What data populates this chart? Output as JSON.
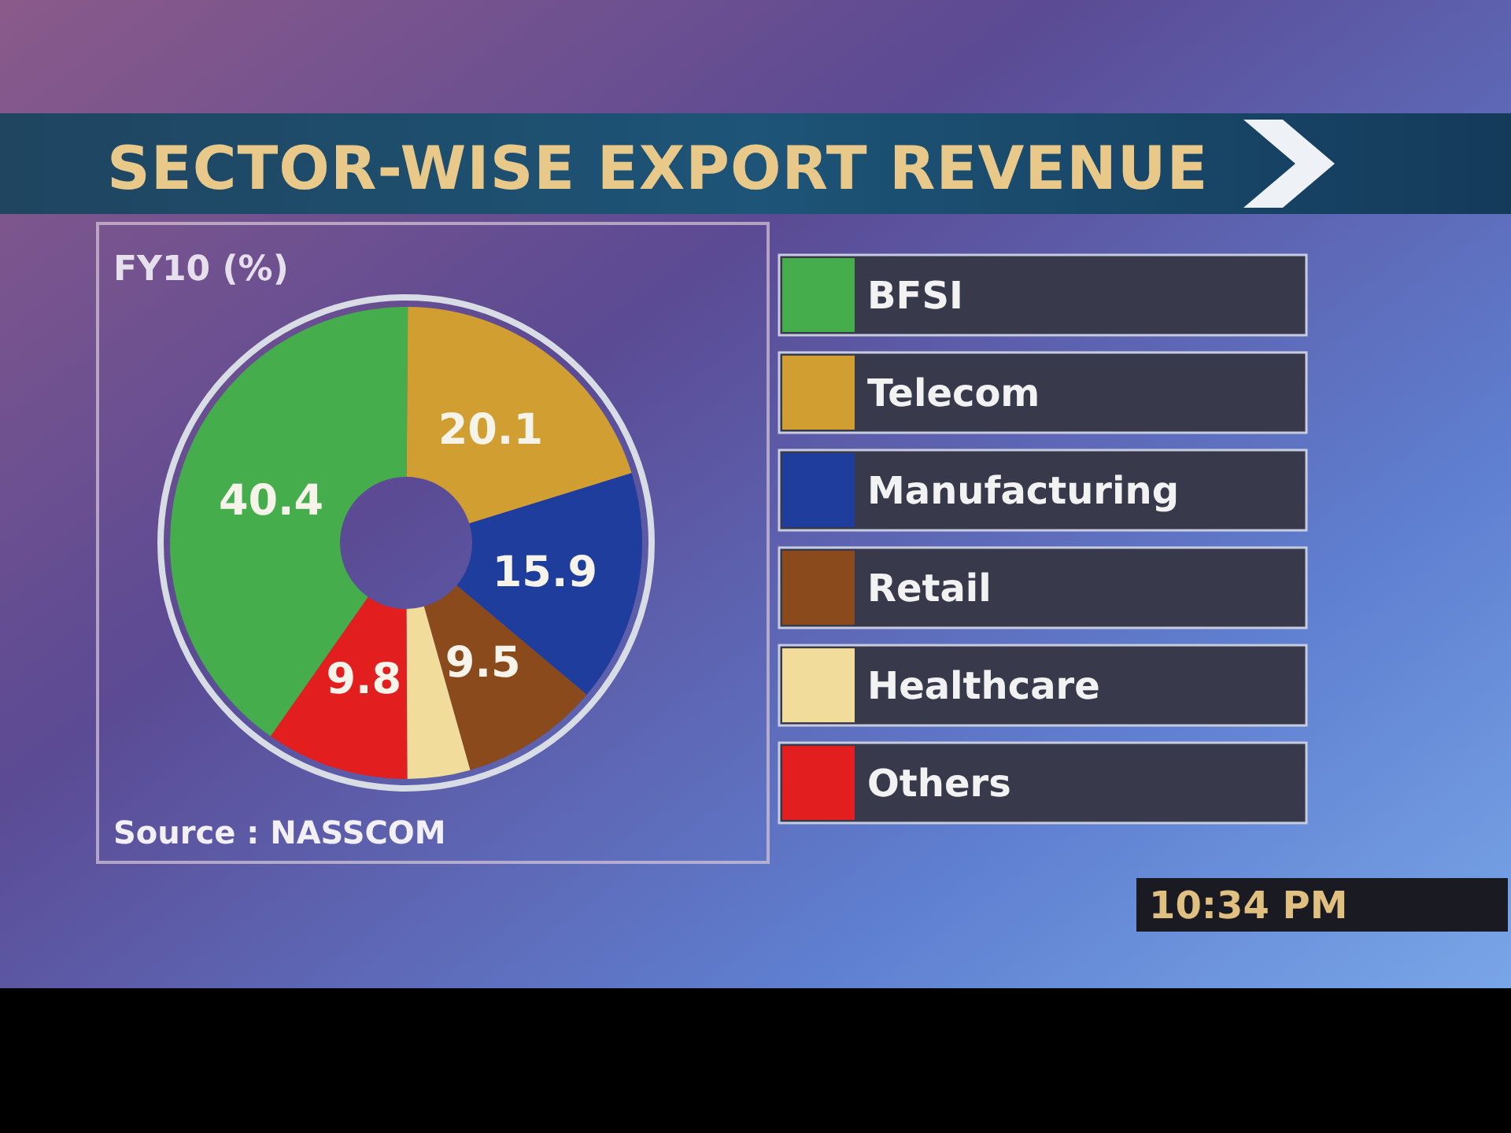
{
  "chart_data": {
    "type": "donut",
    "title": "SECTOR-WISE EXPORT REVENUE",
    "subtitle": "FY10 (%)",
    "categories": [
      "BFSI",
      "Telecom",
      "Manufacturing",
      "Retail",
      "Healthcare",
      "Others"
    ],
    "values": [
      40.4,
      20.1,
      15.9,
      9.5,
      4.3,
      9.8
    ],
    "colors": [
      "#45ad4c",
      "#d19e32",
      "#1f3d9c",
      "#8a4a1c",
      "#f2dc9c",
      "#e31e1e"
    ],
    "value_labels": [
      "40.4",
      "20.1",
      "15.9",
      "9.5",
      null,
      "9.8"
    ],
    "legend": "right",
    "annotations": [
      "Source : NASSCOM",
      "10:34 PM"
    ]
  }
}
